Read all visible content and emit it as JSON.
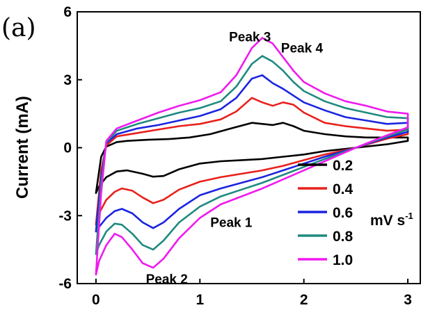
{
  "figure": {
    "panel_label": "(a)",
    "unit_main": "mV s",
    "unit_sup": "-1"
  },
  "chart_data": {
    "type": "line",
    "xlabel": "",
    "ylabel": "Current (mA)",
    "xlim": [
      -0.18,
      3.12
    ],
    "ylim": [
      -6,
      6
    ],
    "x_ticks": [
      0,
      1,
      2,
      3
    ],
    "y_ticks": [
      -6,
      -3,
      0,
      3,
      6
    ],
    "grid": false,
    "legend_position": "bottom-right",
    "annotations": [
      {
        "text": "Peak 3",
        "x": 1.28,
        "y": 4.7
      },
      {
        "text": "Peak 4",
        "x": 1.78,
        "y": 4.2
      },
      {
        "text": "Peak 1",
        "x": 1.1,
        "y": -3.5
      },
      {
        "text": "Peak 2",
        "x": 0.48,
        "y": -6.0
      }
    ],
    "series": [
      {
        "name": "0.2",
        "color": "#000000",
        "anodic": [
          [
            0.0,
            -2.0
          ],
          [
            0.05,
            -0.4
          ],
          [
            0.1,
            0.05
          ],
          [
            0.2,
            0.25
          ],
          [
            0.3,
            0.3
          ],
          [
            0.5,
            0.35
          ],
          [
            0.7,
            0.38
          ],
          [
            0.9,
            0.45
          ],
          [
            1.1,
            0.6
          ],
          [
            1.3,
            0.85
          ],
          [
            1.5,
            1.1
          ],
          [
            1.6,
            1.05
          ],
          [
            1.7,
            1.0
          ],
          [
            1.8,
            1.1
          ],
          [
            1.9,
            0.95
          ],
          [
            2.0,
            0.75
          ],
          [
            2.2,
            0.6
          ],
          [
            2.4,
            0.5
          ],
          [
            2.6,
            0.45
          ],
          [
            2.8,
            0.45
          ],
          [
            3.0,
            0.45
          ]
        ],
        "cathodic": [
          [
            3.0,
            0.3
          ],
          [
            2.8,
            0.15
          ],
          [
            2.5,
            0.0
          ],
          [
            2.2,
            -0.15
          ],
          [
            2.0,
            -0.3
          ],
          [
            1.8,
            -0.4
          ],
          [
            1.6,
            -0.5
          ],
          [
            1.4,
            -0.55
          ],
          [
            1.2,
            -0.6
          ],
          [
            1.0,
            -0.7
          ],
          [
            0.8,
            -0.95
          ],
          [
            0.65,
            -1.25
          ],
          [
            0.55,
            -1.28
          ],
          [
            0.45,
            -1.15
          ],
          [
            0.3,
            -1.0
          ],
          [
            0.2,
            -1.05
          ],
          [
            0.1,
            -1.3
          ],
          [
            0.03,
            -1.7
          ],
          [
            0.0,
            -2.0
          ]
        ]
      },
      {
        "name": "0.4",
        "color": "#e8201c",
        "anodic": [
          [
            0.0,
            -3.4
          ],
          [
            0.05,
            -1.0
          ],
          [
            0.1,
            0.1
          ],
          [
            0.2,
            0.5
          ],
          [
            0.4,
            0.65
          ],
          [
            0.6,
            0.8
          ],
          [
            0.8,
            0.95
          ],
          [
            1.0,
            1.05
          ],
          [
            1.2,
            1.25
          ],
          [
            1.35,
            1.6
          ],
          [
            1.5,
            2.2
          ],
          [
            1.6,
            2.0
          ],
          [
            1.7,
            1.85
          ],
          [
            1.8,
            2.0
          ],
          [
            1.9,
            1.9
          ],
          [
            2.0,
            1.55
          ],
          [
            2.2,
            1.1
          ],
          [
            2.4,
            0.95
          ],
          [
            2.6,
            0.85
          ],
          [
            2.8,
            0.75
          ],
          [
            3.0,
            0.8
          ]
        ],
        "cathodic": [
          [
            3.0,
            0.6
          ],
          [
            2.8,
            0.4
          ],
          [
            2.5,
            0.0
          ],
          [
            2.2,
            -0.3
          ],
          [
            2.0,
            -0.55
          ],
          [
            1.8,
            -0.8
          ],
          [
            1.6,
            -1.0
          ],
          [
            1.4,
            -1.15
          ],
          [
            1.2,
            -1.3
          ],
          [
            1.0,
            -1.5
          ],
          [
            0.8,
            -1.85
          ],
          [
            0.65,
            -2.3
          ],
          [
            0.55,
            -2.45
          ],
          [
            0.45,
            -2.2
          ],
          [
            0.35,
            -1.9
          ],
          [
            0.25,
            -1.8
          ],
          [
            0.18,
            -1.95
          ],
          [
            0.1,
            -2.3
          ],
          [
            0.03,
            -2.9
          ],
          [
            0.0,
            -3.4
          ]
        ]
      },
      {
        "name": "0.6",
        "color": "#1b24e0",
        "anodic": [
          [
            0.0,
            -3.7
          ],
          [
            0.05,
            -1.3
          ],
          [
            0.1,
            0.2
          ],
          [
            0.2,
            0.6
          ],
          [
            0.4,
            0.85
          ],
          [
            0.6,
            1.0
          ],
          [
            0.8,
            1.2
          ],
          [
            1.0,
            1.4
          ],
          [
            1.2,
            1.7
          ],
          [
            1.35,
            2.2
          ],
          [
            1.5,
            3.05
          ],
          [
            1.6,
            3.2
          ],
          [
            1.7,
            2.85
          ],
          [
            1.8,
            2.6
          ],
          [
            1.9,
            2.3
          ],
          [
            2.0,
            2.0
          ],
          [
            2.2,
            1.65
          ],
          [
            2.4,
            1.35
          ],
          [
            2.6,
            1.2
          ],
          [
            2.8,
            1.05
          ],
          [
            3.0,
            1.1
          ]
        ],
        "cathodic": [
          [
            3.0,
            0.7
          ],
          [
            2.8,
            0.45
          ],
          [
            2.5,
            0.0
          ],
          [
            2.2,
            -0.4
          ],
          [
            2.0,
            -0.7
          ],
          [
            1.8,
            -1.0
          ],
          [
            1.6,
            -1.3
          ],
          [
            1.4,
            -1.55
          ],
          [
            1.2,
            -1.8
          ],
          [
            1.0,
            -2.1
          ],
          [
            0.8,
            -2.7
          ],
          [
            0.65,
            -3.3
          ],
          [
            0.55,
            -3.55
          ],
          [
            0.45,
            -3.3
          ],
          [
            0.35,
            -2.9
          ],
          [
            0.25,
            -2.7
          ],
          [
            0.18,
            -2.8
          ],
          [
            0.1,
            -3.1
          ],
          [
            0.03,
            -3.5
          ],
          [
            0.0,
            -3.7
          ]
        ]
      },
      {
        "name": "0.8",
        "color": "#1e8a80",
        "anodic": [
          [
            0.0,
            -4.7
          ],
          [
            0.05,
            -1.6
          ],
          [
            0.1,
            0.25
          ],
          [
            0.2,
            0.75
          ],
          [
            0.4,
            1.05
          ],
          [
            0.6,
            1.3
          ],
          [
            0.8,
            1.55
          ],
          [
            1.0,
            1.75
          ],
          [
            1.2,
            2.05
          ],
          [
            1.35,
            2.7
          ],
          [
            1.5,
            3.7
          ],
          [
            1.6,
            4.05
          ],
          [
            1.7,
            3.8
          ],
          [
            1.8,
            3.4
          ],
          [
            1.9,
            2.9
          ],
          [
            2.0,
            2.5
          ],
          [
            2.2,
            2.05
          ],
          [
            2.4,
            1.75
          ],
          [
            2.6,
            1.55
          ],
          [
            2.8,
            1.35
          ],
          [
            3.0,
            1.3
          ]
        ],
        "cathodic": [
          [
            3.0,
            0.8
          ],
          [
            2.8,
            0.5
          ],
          [
            2.5,
            0.0
          ],
          [
            2.2,
            -0.5
          ],
          [
            2.0,
            -0.85
          ],
          [
            1.8,
            -1.2
          ],
          [
            1.6,
            -1.55
          ],
          [
            1.4,
            -1.85
          ],
          [
            1.2,
            -2.15
          ],
          [
            1.0,
            -2.6
          ],
          [
            0.8,
            -3.3
          ],
          [
            0.65,
            -4.1
          ],
          [
            0.55,
            -4.5
          ],
          [
            0.45,
            -4.3
          ],
          [
            0.35,
            -3.8
          ],
          [
            0.25,
            -3.4
          ],
          [
            0.18,
            -3.35
          ],
          [
            0.1,
            -3.7
          ],
          [
            0.03,
            -4.3
          ],
          [
            0.0,
            -4.7
          ]
        ]
      },
      {
        "name": "1.0",
        "color": "#ef1aef",
        "anodic": [
          [
            0.0,
            -5.6
          ],
          [
            0.05,
            -2.0
          ],
          [
            0.1,
            0.3
          ],
          [
            0.2,
            0.85
          ],
          [
            0.4,
            1.2
          ],
          [
            0.6,
            1.55
          ],
          [
            0.8,
            1.85
          ],
          [
            1.0,
            2.1
          ],
          [
            1.2,
            2.45
          ],
          [
            1.35,
            3.2
          ],
          [
            1.5,
            4.4
          ],
          [
            1.6,
            4.85
          ],
          [
            1.7,
            4.6
          ],
          [
            1.8,
            4.0
          ],
          [
            1.9,
            3.4
          ],
          [
            2.0,
            2.9
          ],
          [
            2.2,
            2.4
          ],
          [
            2.4,
            2.05
          ],
          [
            2.6,
            1.85
          ],
          [
            2.8,
            1.6
          ],
          [
            3.0,
            1.5
          ]
        ],
        "cathodic": [
          [
            3.0,
            0.9
          ],
          [
            2.8,
            0.55
          ],
          [
            2.5,
            0.0
          ],
          [
            2.2,
            -0.6
          ],
          [
            2.0,
            -1.0
          ],
          [
            1.8,
            -1.4
          ],
          [
            1.6,
            -1.8
          ],
          [
            1.4,
            -2.15
          ],
          [
            1.2,
            -2.5
          ],
          [
            1.0,
            -3.1
          ],
          [
            0.8,
            -4.0
          ],
          [
            0.65,
            -4.9
          ],
          [
            0.55,
            -5.3
          ],
          [
            0.45,
            -5.1
          ],
          [
            0.35,
            -4.5
          ],
          [
            0.25,
            -3.95
          ],
          [
            0.18,
            -3.8
          ],
          [
            0.1,
            -4.3
          ],
          [
            0.03,
            -5.0
          ],
          [
            0.0,
            -5.6
          ]
        ]
      }
    ]
  }
}
